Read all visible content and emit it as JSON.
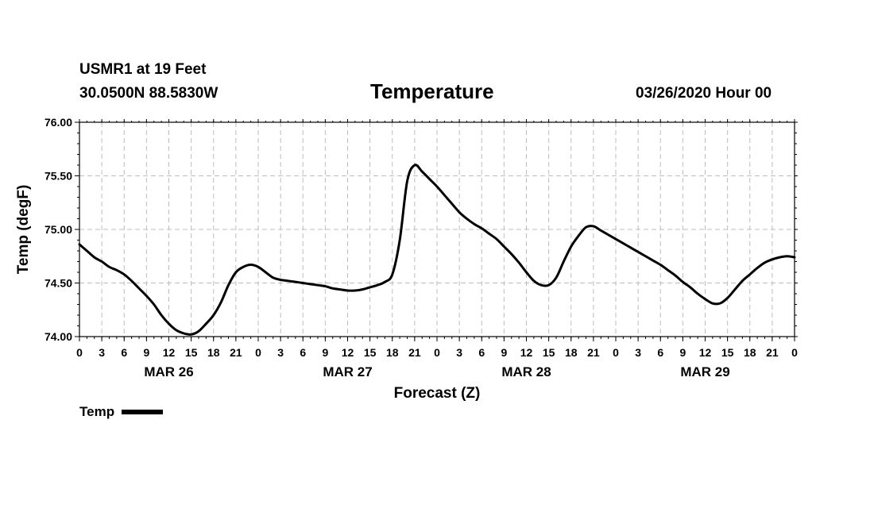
{
  "header": {
    "station": "USMR1 at 19 Feet",
    "coords": "30.0500N 88.5830W",
    "title": "Temperature",
    "timestamp": "03/26/2020 Hour 00"
  },
  "legend": {
    "label": "Temp"
  },
  "chart_data": {
    "type": "line",
    "title": "Temperature",
    "xlabel": "Forecast (Z)",
    "ylabel": "Temp (degF)",
    "ylim": [
      74.0,
      76.0
    ],
    "xlim": [
      0,
      96
    ],
    "yticks": [
      "74.00",
      "74.50",
      "75.00",
      "75.50",
      "76.00"
    ],
    "xtick_labels": [
      "0",
      "3",
      "6",
      "9",
      "12",
      "15",
      "18",
      "21",
      "0",
      "3",
      "6",
      "9",
      "12",
      "15",
      "18",
      "21",
      "0",
      "3",
      "6",
      "9",
      "12",
      "15",
      "18",
      "21",
      "0",
      "3",
      "6",
      "9",
      "12",
      "15",
      "18",
      "21",
      "0"
    ],
    "day_labels": [
      {
        "label": "MAR 26",
        "x": 12
      },
      {
        "label": "MAR 27",
        "x": 36
      },
      {
        "label": "MAR 28",
        "x": 60
      },
      {
        "label": "MAR 29",
        "x": 84
      }
    ],
    "grid": true,
    "legend_position": "bottom-left",
    "series": [
      {
        "name": "Temp",
        "color": "#000000",
        "x": [
          0,
          1,
          2,
          3,
          4,
          5,
          6,
          7,
          8,
          9,
          10,
          11,
          12,
          13,
          14,
          15,
          16,
          17,
          18,
          19,
          20,
          21,
          22,
          23,
          24,
          25,
          26,
          27,
          28,
          29,
          30,
          31,
          32,
          33,
          34,
          35,
          36,
          37,
          38,
          39,
          40,
          41,
          42,
          43,
          44,
          45,
          46,
          47,
          48,
          49,
          50,
          51,
          52,
          53,
          54,
          55,
          56,
          57,
          58,
          59,
          60,
          61,
          62,
          63,
          64,
          65,
          66,
          67,
          68,
          69,
          70,
          71,
          72,
          73,
          74,
          75,
          76,
          77,
          78,
          79,
          80,
          81,
          82,
          83,
          84,
          85,
          86,
          87,
          88,
          89,
          90,
          91,
          92,
          93,
          94,
          95,
          96
        ],
        "y": [
          74.86,
          74.8,
          74.74,
          74.7,
          74.65,
          74.62,
          74.58,
          74.52,
          74.45,
          74.38,
          74.3,
          74.2,
          74.12,
          74.06,
          74.03,
          74.02,
          74.05,
          74.12,
          74.2,
          74.32,
          74.48,
          74.6,
          74.65,
          74.67,
          74.65,
          74.6,
          74.55,
          74.53,
          74.52,
          74.51,
          74.5,
          74.49,
          74.48,
          74.47,
          74.45,
          74.44,
          74.43,
          74.43,
          74.44,
          74.46,
          74.48,
          74.51,
          74.58,
          74.9,
          75.45,
          75.6,
          75.54,
          75.47,
          75.4,
          75.32,
          75.24,
          75.16,
          75.1,
          75.05,
          75.01,
          74.96,
          74.91,
          74.84,
          74.77,
          74.69,
          74.6,
          74.52,
          74.48,
          74.48,
          74.55,
          74.7,
          74.84,
          74.94,
          75.02,
          75.03,
          74.99,
          74.95,
          74.91,
          74.87,
          74.83,
          74.79,
          74.75,
          74.71,
          74.67,
          74.62,
          74.57,
          74.51,
          74.46,
          74.4,
          74.35,
          74.31,
          74.31,
          74.36,
          74.44,
          74.52,
          74.58,
          74.64,
          74.69,
          74.72,
          74.74,
          74.75,
          74.74
        ]
      }
    ]
  }
}
